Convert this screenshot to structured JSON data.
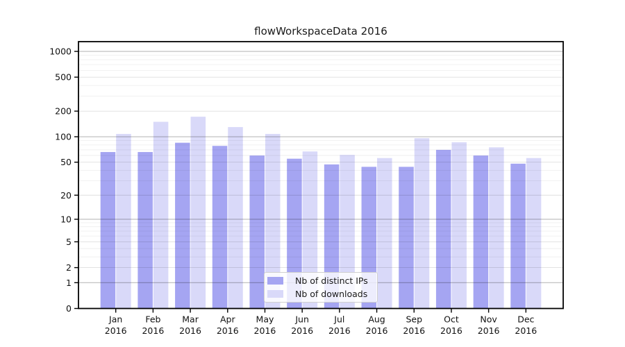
{
  "chart_data": {
    "type": "bar",
    "title": "flowWorkspaceData 2016",
    "categories": [
      "Jan",
      "Feb",
      "Mar",
      "Apr",
      "May",
      "Jun",
      "Jul",
      "Aug",
      "Sep",
      "Oct",
      "Nov",
      "Dec"
    ],
    "category_year": "2016",
    "series": [
      {
        "name": "Nb of distinct IPs",
        "color": "#a5a5f2",
        "values": [
          66,
          66,
          85,
          78,
          60,
          55,
          47,
          44,
          44,
          70,
          60,
          48
        ]
      },
      {
        "name": "Nb of downloads",
        "color": "#d9d9f9",
        "values": [
          108,
          150,
          172,
          130,
          108,
          67,
          61,
          56,
          96,
          86,
          75,
          56
        ]
      }
    ],
    "y_axis": {
      "scale": "log1p",
      "major_ticks": [
        0,
        1,
        2,
        5,
        10,
        20,
        50,
        100,
        200,
        500,
        1000
      ],
      "minor_ticks": [
        3,
        4,
        6,
        7,
        8,
        9,
        30,
        40,
        60,
        70,
        80,
        90,
        300,
        400,
        600,
        700,
        800,
        900
      ],
      "max": 1300
    },
    "legend_position": "lower center",
    "grid": true,
    "grid_over_bars": true,
    "frame_color": "#000000",
    "background_color": "#ffffff"
  }
}
